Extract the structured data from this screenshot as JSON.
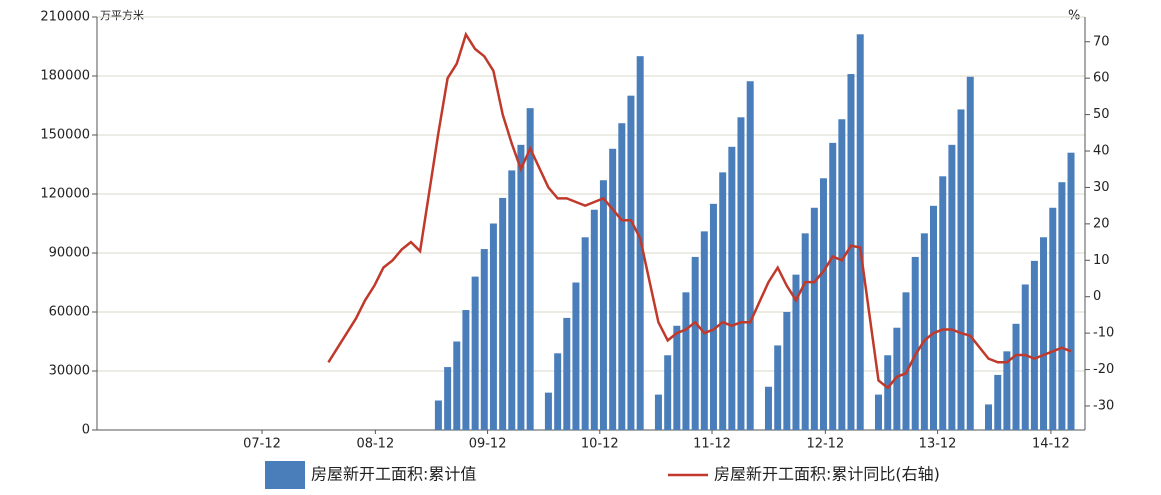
{
  "chart_data": {
    "type": "bar-line",
    "y_label": "万平方米",
    "y2_label": "%",
    "x": [
      2009.083,
      2009.167,
      2009.25,
      2009.333,
      2009.417,
      2009.5,
      2009.583,
      2009.667,
      2009.75,
      2009.833,
      2009.917,
      2010.083,
      2010.167,
      2010.25,
      2010.333,
      2010.417,
      2010.5,
      2010.583,
      2010.667,
      2010.75,
      2010.833,
      2010.917,
      2011.083,
      2011.167,
      2011.25,
      2011.333,
      2011.417,
      2011.5,
      2011.583,
      2011.667,
      2011.75,
      2011.833,
      2011.917,
      2012.083,
      2012.167,
      2012.25,
      2012.333,
      2012.417,
      2012.5,
      2012.583,
      2012.667,
      2012.75,
      2012.833,
      2012.917,
      2013.083,
      2013.167,
      2013.25,
      2013.333,
      2013.417,
      2013.5,
      2013.583,
      2013.667,
      2013.75,
      2013.833,
      2013.917,
      2014.083,
      2014.167,
      2014.25,
      2014.333,
      2014.417,
      2014.5,
      2014.583,
      2014.667,
      2014.75,
      2014.833,
      2014.917,
      2015.083,
      2015.167,
      2015.25,
      2015.333,
      2015.417,
      2015.5,
      2015.583,
      2015.667,
      2015.75,
      2015.833
    ],
    "xlim": [
      2006.98,
      2015.96
    ],
    "xticks": [
      {
        "value": 2008.48,
        "label": "07-12"
      },
      {
        "value": 2009.51,
        "label": "08-12"
      },
      {
        "value": 2010.53,
        "label": "09-12"
      },
      {
        "value": 2011.55,
        "label": "10-12"
      },
      {
        "value": 2012.57,
        "label": "11-12"
      },
      {
        "value": 2013.6,
        "label": "12-12"
      },
      {
        "value": 2014.62,
        "label": "13-12"
      },
      {
        "value": 2015.65,
        "label": "14-12"
      }
    ],
    "ylim": [
      0,
      210000
    ],
    "yticks": [
      0,
      30000,
      60000,
      90000,
      120000,
      150000,
      180000,
      210000
    ],
    "y2lim": [
      -36.6,
      76.8
    ],
    "y2ticks": [
      -30,
      -20,
      -10,
      0,
      10,
      20,
      30,
      40,
      50,
      60,
      70
    ],
    "grid": true,
    "series": [
      {
        "name": "房屋新开工面积:累计值",
        "color": "#4a7ebb",
        "values": [
          null,
          null,
          null,
          null,
          null,
          null,
          null,
          null,
          null,
          null,
          null,
          15000,
          32000,
          45000,
          61000,
          78000,
          92000,
          105000,
          118000,
          132000,
          145000,
          163647,
          19000,
          39000,
          57000,
          75000,
          98000,
          112000,
          127000,
          143000,
          156000,
          170000,
          190083,
          18000,
          38000,
          53000,
          70000,
          88000,
          101000,
          115000,
          131000,
          144000,
          159000,
          177334,
          22000,
          43000,
          60000,
          79000,
          100000,
          113000,
          128000,
          146000,
          158000,
          181000,
          201208,
          18000,
          38000,
          52000,
          70000,
          88000,
          100000,
          114000,
          129000,
          145000,
          163000,
          179592,
          13000,
          28000,
          40000,
          54000,
          74000,
          86000,
          98000,
          113000,
          126000,
          141000
        ]
      },
      {
        "name": "房屋新开工面积:累计同比(右轴)",
        "color": "#c0392b",
        "axis": "y2",
        "values": [
          -18,
          -14,
          -10,
          -6,
          -1,
          3,
          8,
          10,
          13,
          15,
          12.5,
          45,
          60,
          64,
          72,
          68,
          66,
          62,
          50,
          42,
          35,
          40.7,
          30,
          27,
          27,
          26,
          25,
          26,
          27,
          24,
          21,
          21,
          16,
          -7,
          -12,
          -10,
          -9,
          -7,
          -10,
          -9,
          -7,
          -8,
          -7,
          -7,
          4,
          8,
          3,
          -1,
          4,
          4,
          7,
          11,
          10,
          14,
          13.5,
          -23,
          -25,
          -22,
          -21,
          -16,
          -12,
          -10,
          -9,
          -9,
          -10,
          -10.7,
          -17,
          -18,
          -18,
          -16,
          -16,
          -17,
          -16,
          -15,
          -14,
          -15
        ]
      }
    ]
  }
}
